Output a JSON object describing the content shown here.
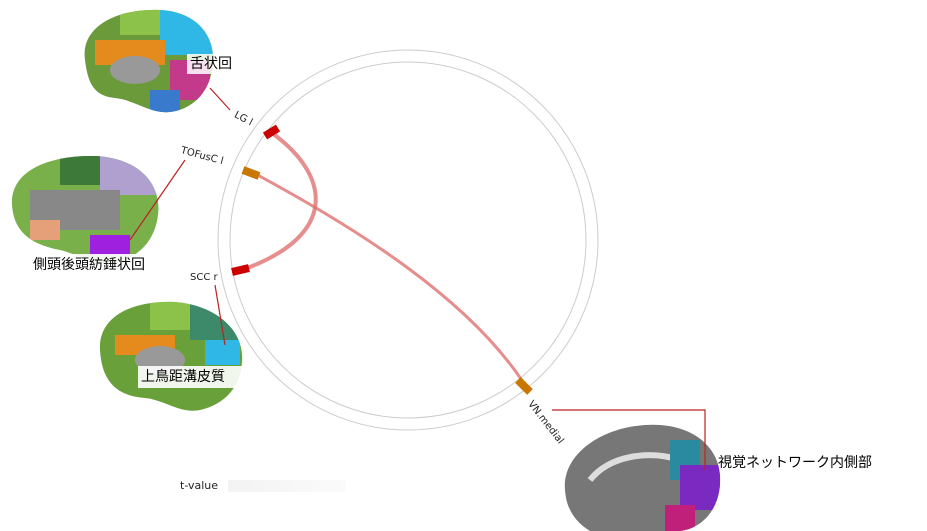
{
  "nodes": [
    {
      "label": "LG l",
      "name": "舌状回"
    },
    {
      "label": "TOFusC l",
      "name": "側頭後頭紡錘状回"
    },
    {
      "label": "SCC r",
      "name": "上鳥距溝皮質"
    },
    {
      "label": "VN.medial",
      "name": "視覚ネットワーク内側部"
    }
  ],
  "legend": {
    "title": "t-value"
  }
}
